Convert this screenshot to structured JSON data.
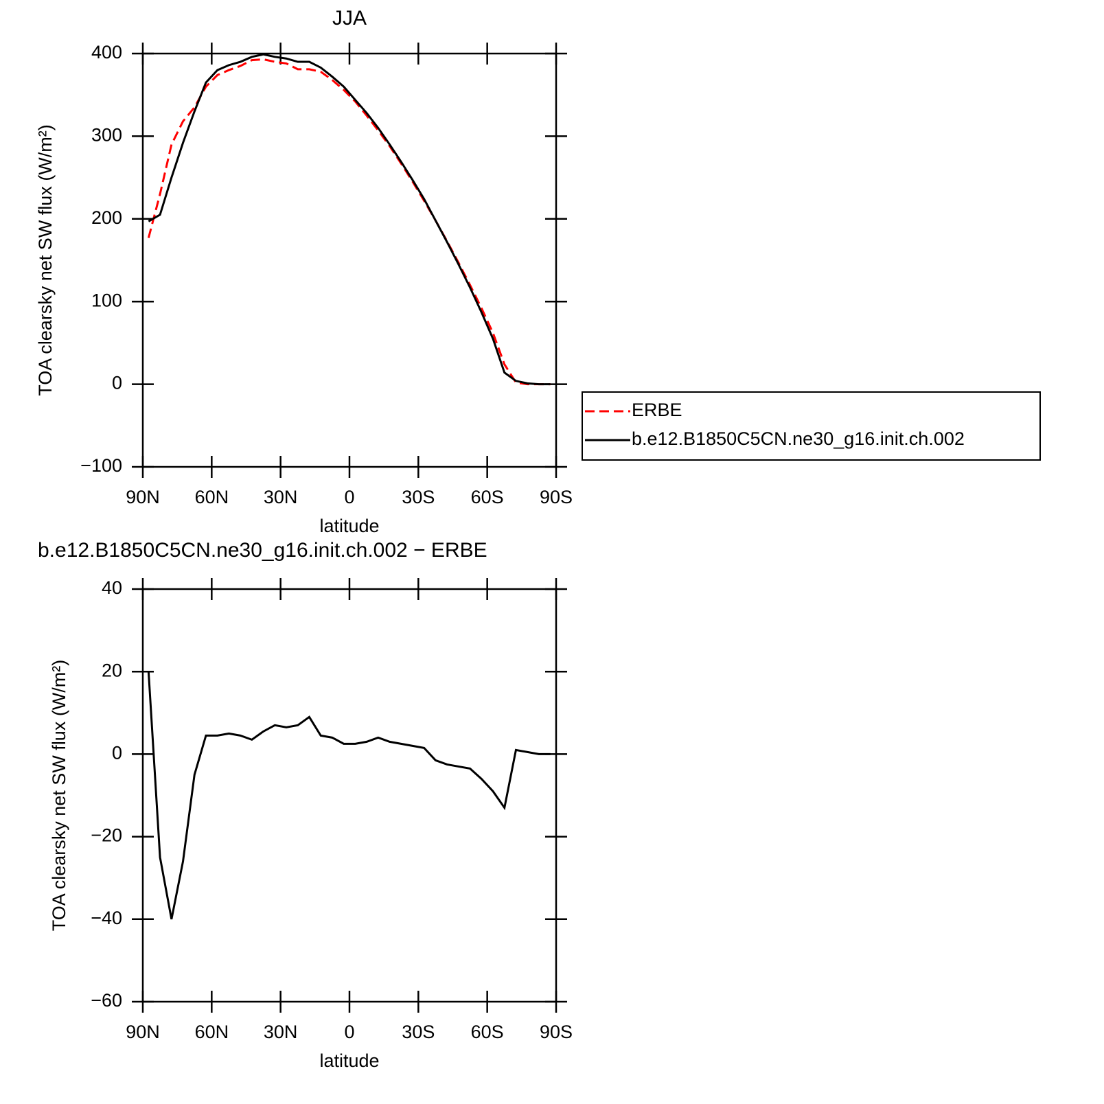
{
  "chart_data": [
    {
      "type": "line",
      "title": "JJA",
      "xlabel": "latitude",
      "ylabel": "TOA clearsky net SW flux (W/m²)",
      "x": [
        87.5,
        82.5,
        77.5,
        72.5,
        67.5,
        62.5,
        57.5,
        52.5,
        47.5,
        42.5,
        37.5,
        32.5,
        27.5,
        22.5,
        17.5,
        12.5,
        7.5,
        2.5,
        -2.5,
        -7.5,
        -12.5,
        -17.5,
        -22.5,
        -27.5,
        -32.5,
        -37.5,
        -42.5,
        -47.5,
        -52.5,
        -57.5,
        -62.5,
        -67.5,
        -72.5,
        -77.5,
        -82.5,
        -87.5
      ],
      "series": [
        {
          "name": "ERBE",
          "color": "#ff0000",
          "style": "dashed",
          "values": [
            177,
            230,
            290,
            318,
            335,
            360,
            374,
            380,
            385,
            392,
            393,
            390,
            388,
            381,
            381,
            378,
            368,
            356,
            342,
            325,
            307,
            288,
            267,
            245,
            222,
            198,
            173,
            147,
            120,
            92,
            62,
            24,
            2,
            0,
            0,
            0
          ]
        },
        {
          "name": "b.e12.B1850C5CN.ne30_g16.init.ch.002",
          "color": "#000000",
          "style": "solid",
          "values": [
            197,
            205,
            250,
            292,
            330,
            365,
            380,
            386,
            390,
            396,
            399,
            396,
            394,
            390,
            390,
            383,
            372,
            360,
            344,
            328,
            310,
            290,
            269,
            247,
            224,
            198,
            172,
            145,
            117,
            87,
            55,
            14,
            4,
            1,
            0,
            0
          ]
        }
      ],
      "xlim": [
        90,
        -90
      ],
      "xticks": [
        {
          "value": 90,
          "label": "90N"
        },
        {
          "value": 60,
          "label": "60N"
        },
        {
          "value": 30,
          "label": "30N"
        },
        0,
        {
          "value": -30,
          "label": "30S"
        },
        {
          "value": -60,
          "label": "60S"
        },
        {
          "value": -90,
          "label": "90S"
        }
      ],
      "ylim": [
        -100,
        400
      ],
      "yticks": [
        {
          "value": -100,
          "label": "−100"
        },
        0,
        100,
        200,
        300,
        400
      ],
      "legend": "right"
    },
    {
      "type": "line",
      "title": "b.e12.B1850C5CN.ne30_g16.init.ch.002 − ERBE",
      "xlabel": "latitude",
      "ylabel": "TOA clearsky net SW flux (W/m²)",
      "x": [
        87.5,
        82.5,
        77.5,
        72.5,
        67.5,
        62.5,
        57.5,
        52.5,
        47.5,
        42.5,
        37.5,
        32.5,
        27.5,
        22.5,
        17.5,
        12.5,
        7.5,
        2.5,
        -2.5,
        -7.5,
        -12.5,
        -17.5,
        -22.5,
        -27.5,
        -32.5,
        -37.5,
        -42.5,
        -47.5,
        -52.5,
        -57.5,
        -62.5,
        -67.5,
        -72.5,
        -77.5,
        -82.5,
        -87.5
      ],
      "color": "#000000",
      "values": [
        20,
        -25,
        -40,
        -26,
        -5,
        4.5,
        4.5,
        5,
        4.5,
        3.5,
        5.5,
        7,
        6.5,
        7,
        9,
        4.5,
        4,
        2.5,
        2.5,
        3,
        4,
        3,
        2.5,
        2,
        1.5,
        -1.5,
        -2.5,
        -3,
        -3.5,
        -6,
        -9,
        -13,
        1,
        0.5,
        0,
        0
      ],
      "xlim": [
        90,
        -90
      ],
      "xticks": [
        {
          "value": 90,
          "label": "90N"
        },
        {
          "value": 60,
          "label": "60N"
        },
        {
          "value": 30,
          "label": "30N"
        },
        0,
        {
          "value": -30,
          "label": "30S"
        },
        {
          "value": -60,
          "label": "60S"
        },
        {
          "value": -90,
          "label": "90S"
        }
      ],
      "ylim": [
        -60,
        40
      ],
      "yticks": [
        {
          "value": -60,
          "label": "−60"
        },
        {
          "value": -40,
          "label": "−40"
        },
        {
          "value": -20,
          "label": "−20"
        },
        0,
        20,
        40
      ]
    }
  ]
}
